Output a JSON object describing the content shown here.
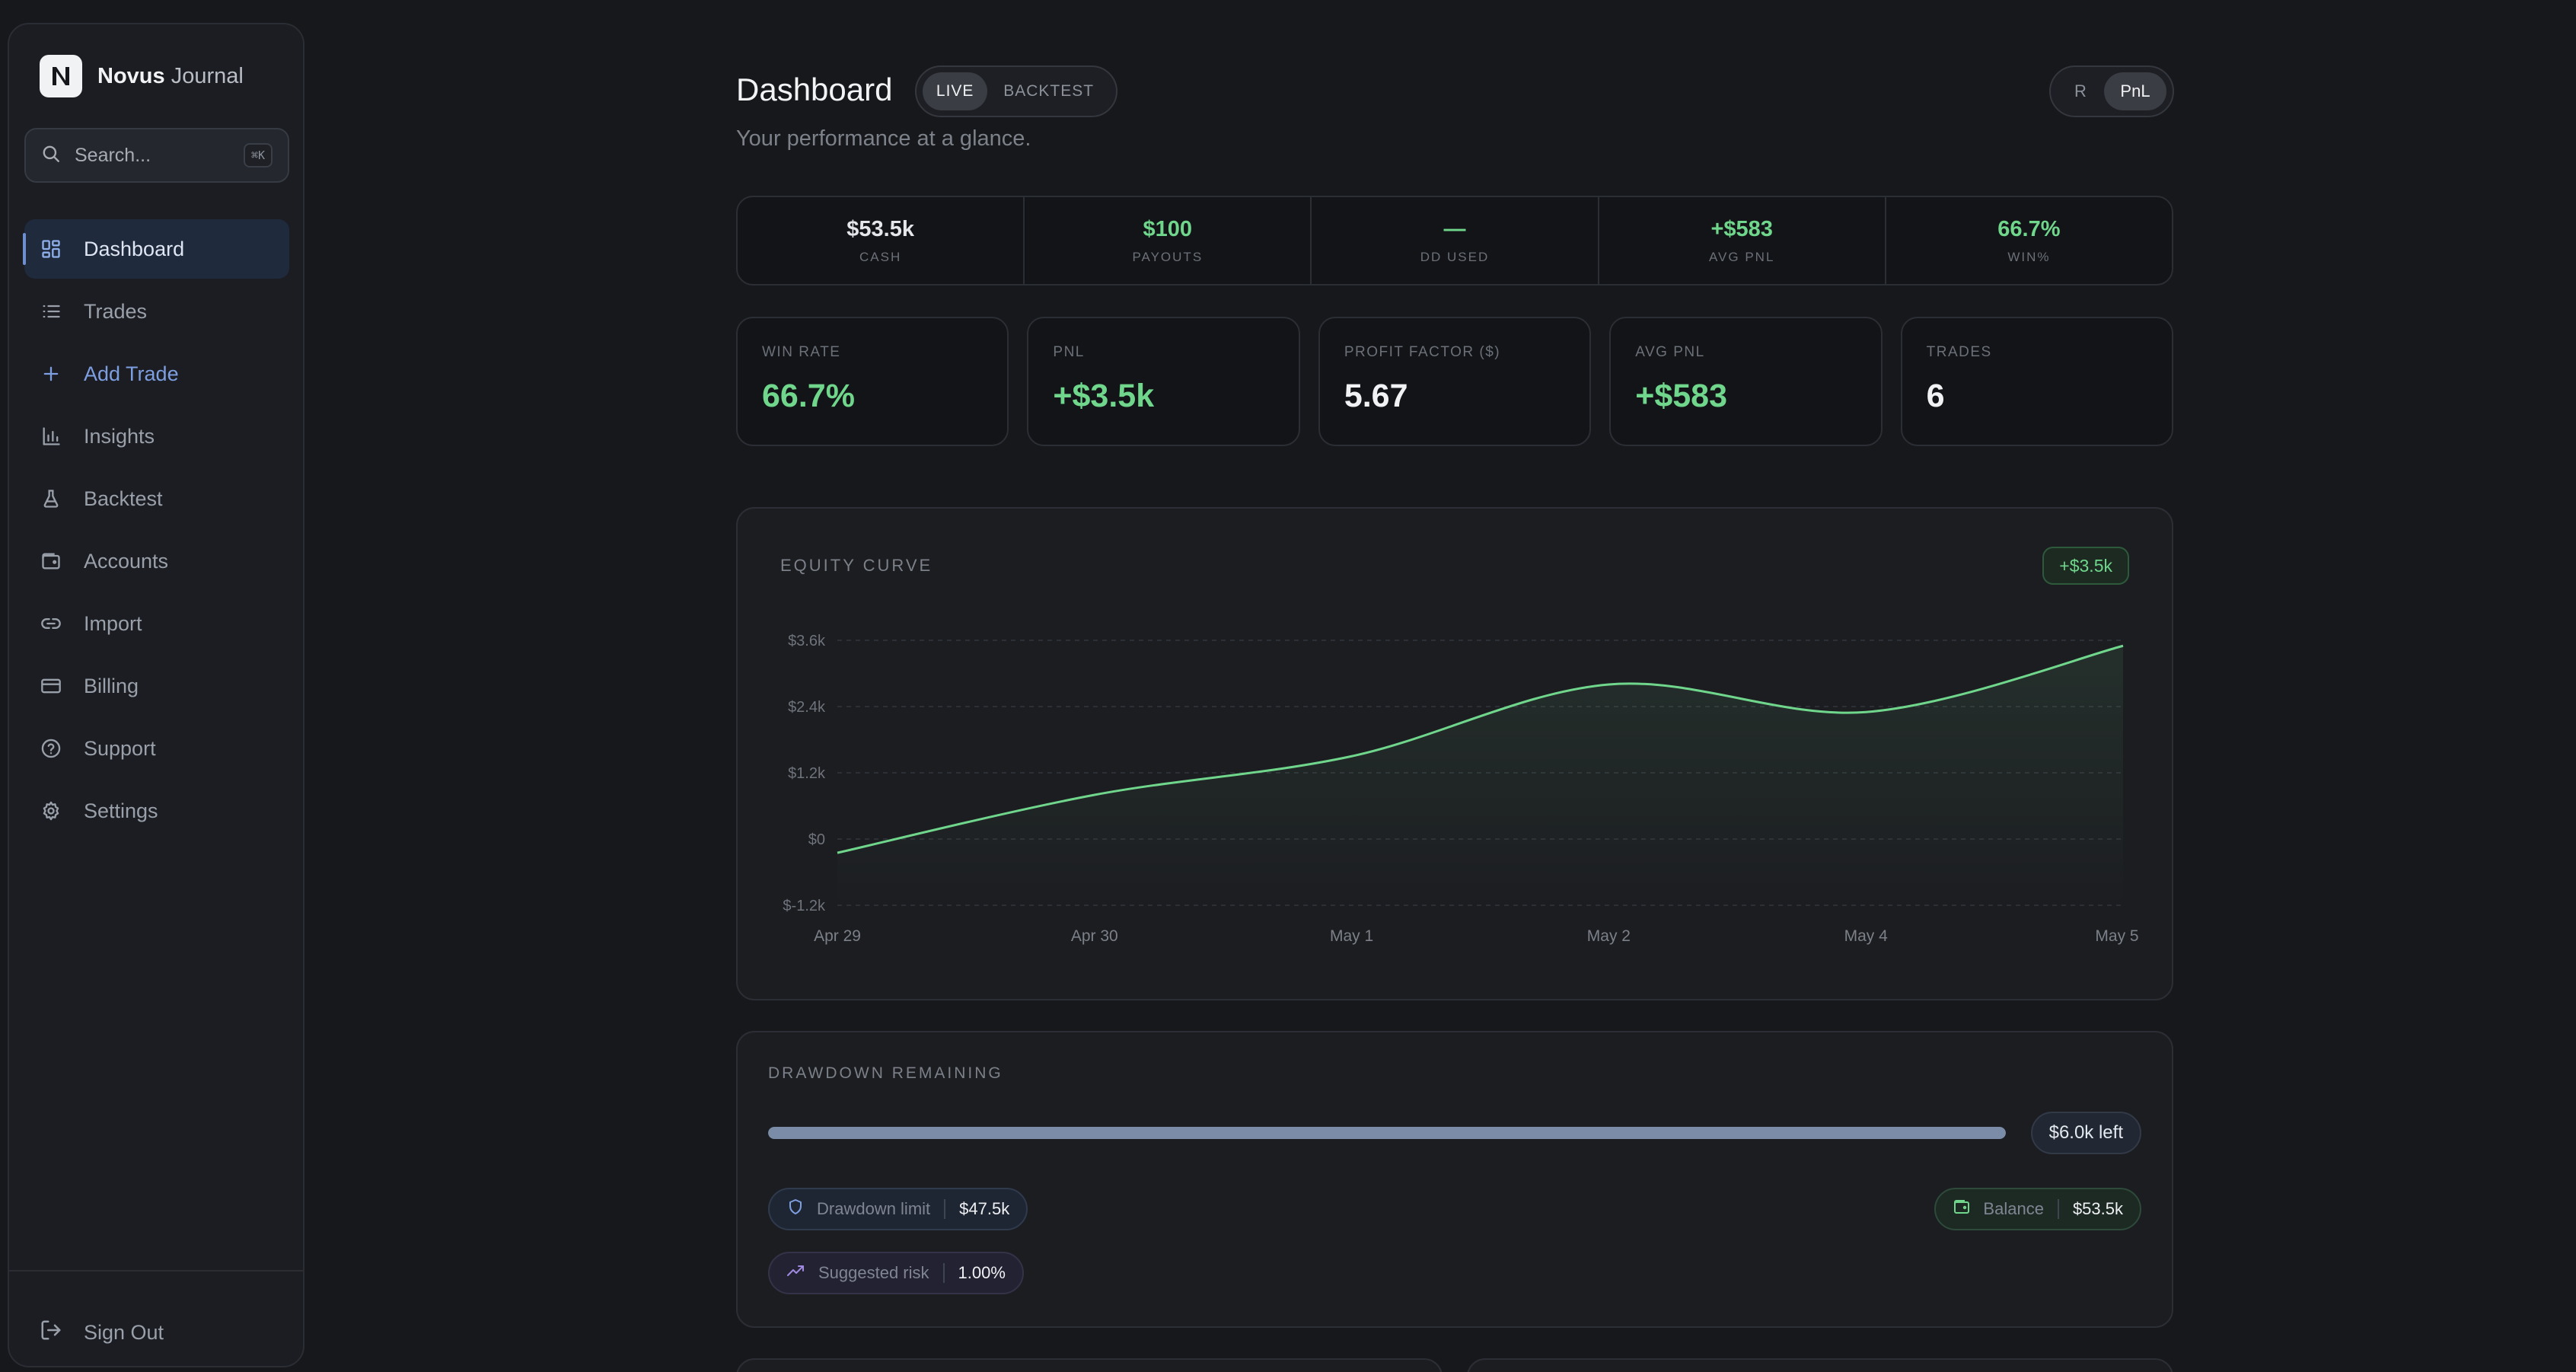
{
  "brand": {
    "name_bold": "Novus",
    "name_light": "Journal"
  },
  "search": {
    "placeholder": "Search...",
    "shortcut": "⌘K"
  },
  "sidebar": {
    "items": [
      {
        "label": "Dashboard",
        "icon": "dashboard-icon",
        "active": true
      },
      {
        "label": "Trades",
        "icon": "list-icon"
      },
      {
        "label": "Add Trade",
        "icon": "plus-icon"
      },
      {
        "label": "Insights",
        "icon": "bar-chart-icon"
      },
      {
        "label": "Backtest",
        "icon": "flask-icon"
      },
      {
        "label": "Accounts",
        "icon": "wallet-icon"
      },
      {
        "label": "Import",
        "icon": "link-icon"
      },
      {
        "label": "Billing",
        "icon": "credit-card-icon"
      },
      {
        "label": "Support",
        "icon": "help-circle-icon"
      },
      {
        "label": "Settings",
        "icon": "gear-icon"
      }
    ],
    "signout": "Sign Out"
  },
  "header": {
    "title": "Dashboard",
    "subtitle": "Your performance at a glance.",
    "mode": {
      "live": "LIVE",
      "backtest": "BACKTEST",
      "selected": "LIVE"
    },
    "unit": {
      "r": "R",
      "pnl": "PnL",
      "selected": "PnL"
    }
  },
  "summary": [
    {
      "value": "$53.5k",
      "label": "CASH",
      "green": false
    },
    {
      "value": "$100",
      "label": "PAYOUTS",
      "green": true
    },
    {
      "value": "—",
      "label": "DD USED",
      "green": true
    },
    {
      "value": "+$583",
      "label": "AVG PNL",
      "green": true
    },
    {
      "value": "66.7%",
      "label": "WIN%",
      "green": true
    }
  ],
  "metrics": [
    {
      "label": "WIN RATE",
      "value": "66.7%",
      "green": true
    },
    {
      "label": "PNL",
      "value": "+$3.5k",
      "green": true
    },
    {
      "label": "PROFIT FACTOR ($)",
      "value": "5.67",
      "green": false
    },
    {
      "label": "AVG PNL",
      "value": "+$583",
      "green": true
    },
    {
      "label": "TRADES",
      "value": "6",
      "green": false
    }
  ],
  "equity": {
    "title": "EQUITY CURVE",
    "badge": "+$3.5k"
  },
  "chart_data": {
    "type": "area",
    "title": "EQUITY CURVE",
    "x_tick_labels": [
      "Apr 29",
      "Apr 30",
      "May 1",
      "May 2",
      "May 4",
      "May 5"
    ],
    "y_tick_labels": [
      "$3.6k",
      "$2.4k",
      "$1.2k",
      "$0",
      "$-1.2k"
    ],
    "y_ticks": [
      3600,
      2400,
      1200,
      0,
      -1200
    ],
    "ylim": [
      -1200,
      3600
    ],
    "x": [
      "Apr 29",
      "Apr 30",
      "May 1",
      "May 2",
      "May 4",
      "May 5"
    ],
    "series": [
      {
        "values": [
          -250,
          800,
          1500,
          2800,
          2300,
          3500
        ]
      }
    ],
    "grid": true,
    "colors": {
      "line": "#6fd68c"
    }
  },
  "drawdown": {
    "title": "DRAWDOWN REMAINING",
    "remaining": "$6.0k left",
    "fill_fraction": 1.0,
    "limit_label": "Drawdown limit",
    "limit_value": "$47.5k",
    "risk_label": "Suggested risk",
    "risk_value": "1.00%",
    "balance_label": "Balance",
    "balance_value": "$53.5k"
  }
}
